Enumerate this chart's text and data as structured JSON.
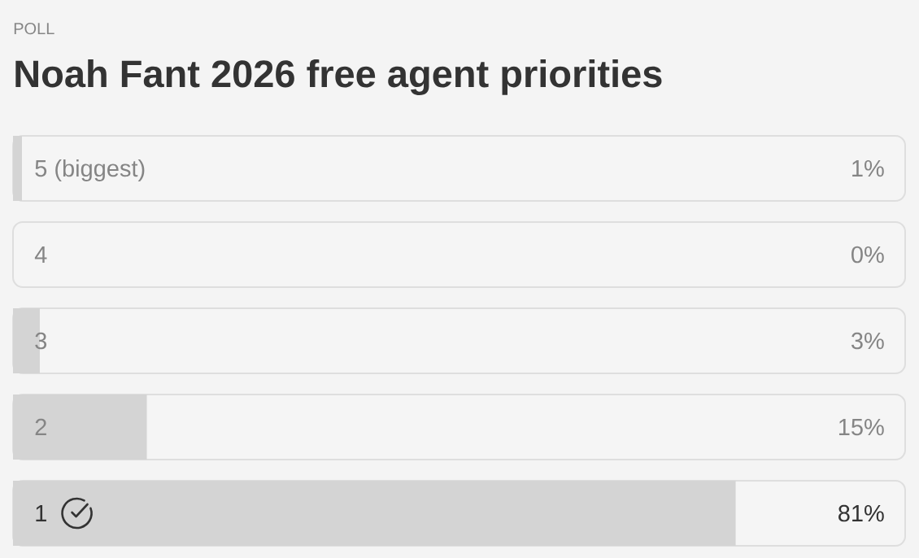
{
  "chart_data": {
    "type": "bar",
    "orientation": "horizontal",
    "subtitle": "POLL",
    "title": "Noah Fant 2026 free agent priorities",
    "categories": [
      "5 (biggest)",
      "4",
      "3",
      "2",
      "1"
    ],
    "values": [
      1,
      0,
      3,
      15,
      81
    ],
    "value_labels": [
      "1%",
      "0%",
      "3%",
      "15%",
      "81%"
    ],
    "color": "#d4d4d4",
    "xlim": [
      0,
      100
    ],
    "tick_labels": "y"
  }
}
